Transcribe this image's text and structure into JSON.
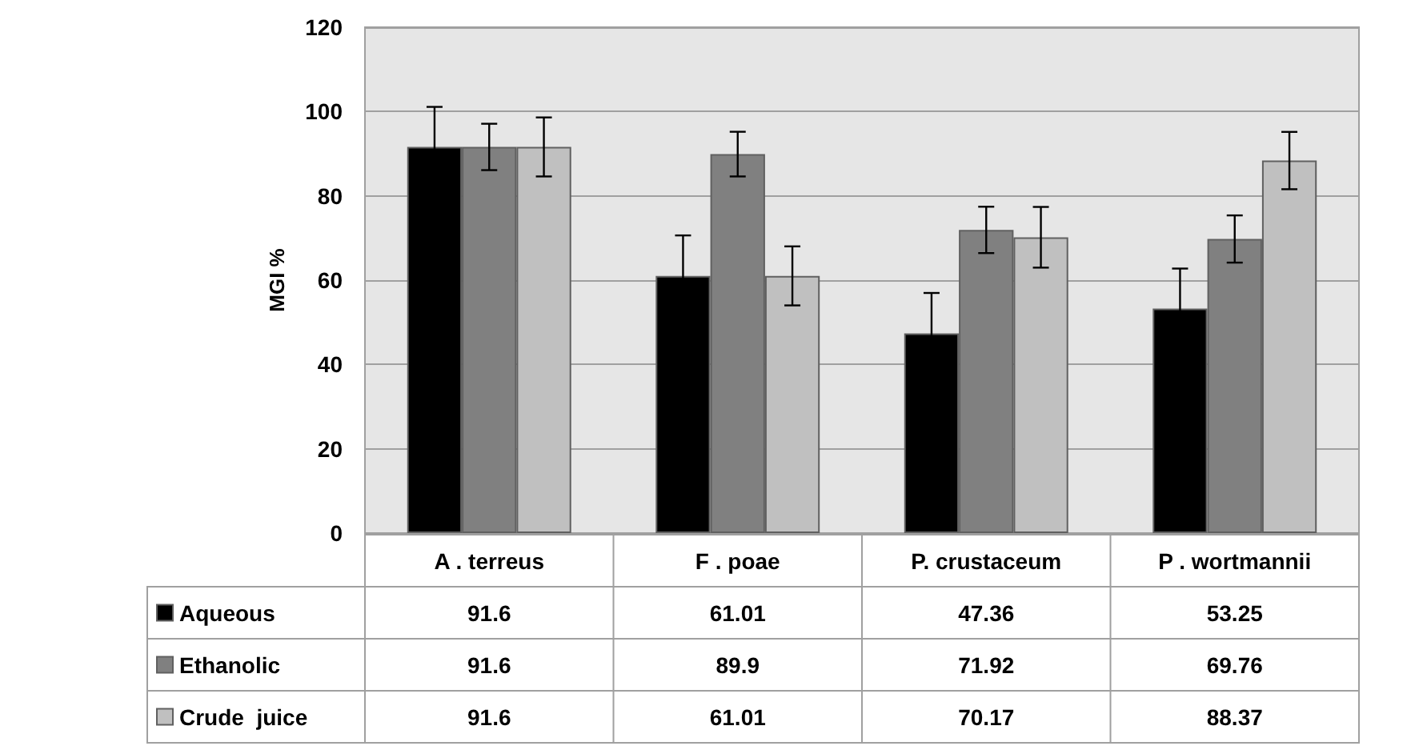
{
  "chart_data": {
    "type": "bar",
    "ylabel": "MGI %",
    "categories": [
      "A . terreus",
      "F . poae",
      "P. crustaceum",
      "P . wortmannii"
    ],
    "series": [
      {
        "name": "Aqueous",
        "color": "#000000",
        "values": [
          91.6,
          61.01,
          47.36,
          53.25
        ],
        "errors": [
          9.5,
          9.6,
          9.6,
          9.5
        ]
      },
      {
        "name": "Ethanolic",
        "color": "#808080",
        "values": [
          91.6,
          89.9,
          71.92,
          69.76
        ],
        "errors": [
          5.5,
          5.3,
          5.5,
          5.6
        ]
      },
      {
        "name": "Crude  juice",
        "color": "#c0c0c0",
        "values": [
          91.6,
          61.01,
          70.17,
          88.37
        ],
        "errors": [
          7,
          7,
          7.2,
          6.8
        ]
      }
    ],
    "ylim": [
      0,
      120
    ],
    "yticks": [
      0,
      20,
      40,
      60,
      80,
      100,
      120
    ],
    "grid": "y",
    "legend": "bottom",
    "data_labels": true
  }
}
